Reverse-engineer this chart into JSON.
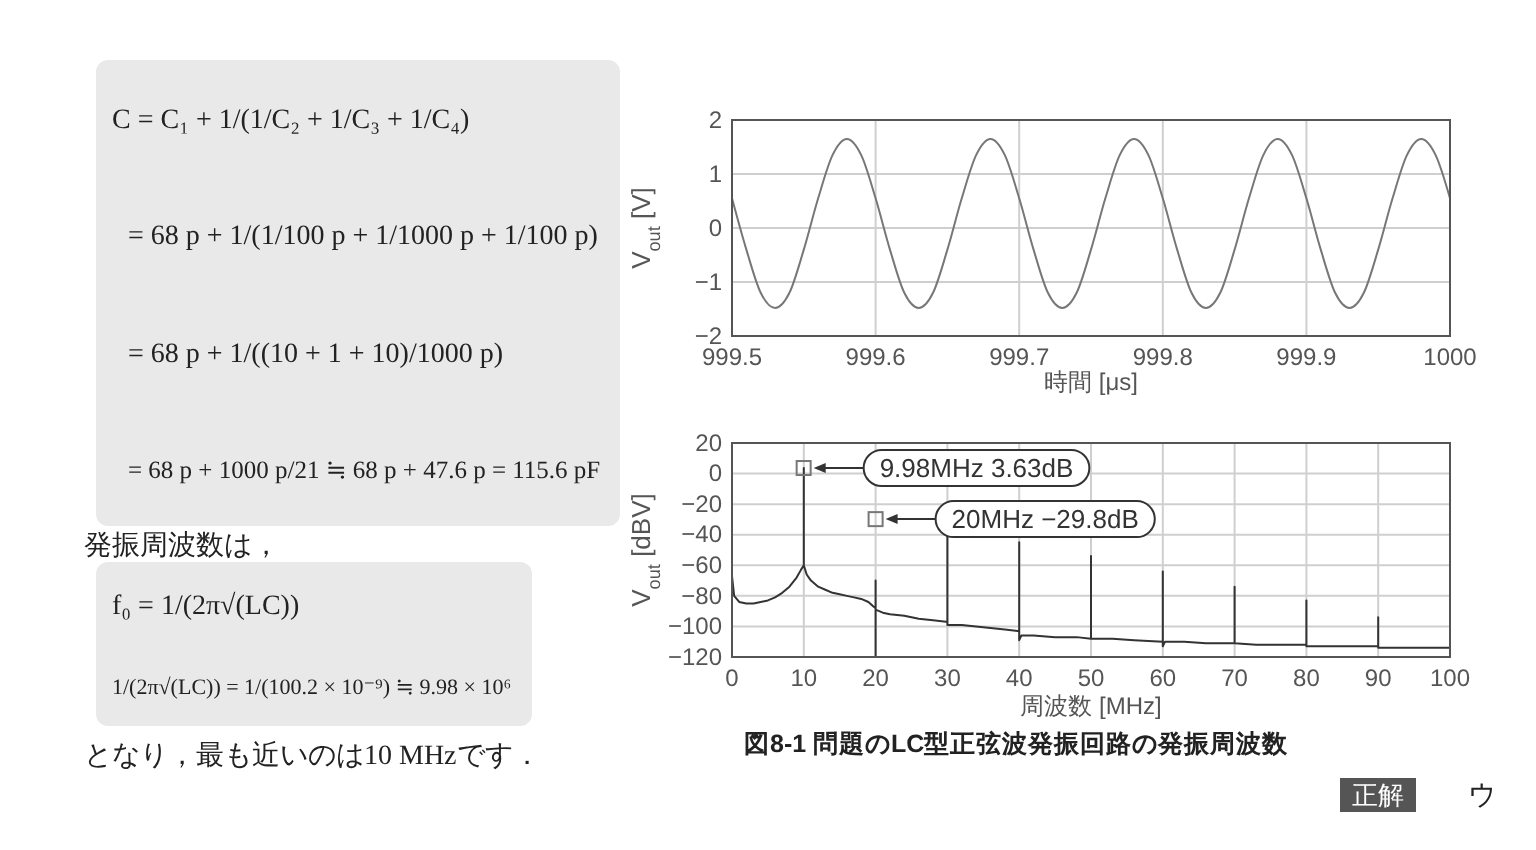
{
  "chart_data": [
    {
      "type": "other",
      "annotations": [
        "C = C₁ + 1/(1/C₂ + 1/C₃ + 1/C₄)",
        "= 68 p + 1/(1/100 p + 1/1000 p + 1/100 p)",
        "= 68 p + 1/((10 + 1 + 10)/1000 p)",
        "= 68 p + 1000 p/21 ≒ 68 p + 47.6 p = 115.6 pF",
        "発振周波数は，",
        "f₀ = 1/(2π√(LC))",
        "1/(2π√(LC)) = 1/(100.2 × 10⁻⁹) ≒ 9.98 × 10⁶",
        "となり，最も近いのは10 MHzです．"
      ]
    },
    {
      "type": "line",
      "xlabel": "時間 [μs]",
      "ylabel": "V$_{out}$ [V]",
      "color": "#777777",
      "grid": true,
      "xlim": [
        999.5,
        1000
      ],
      "ylim": [
        -2,
        2
      ],
      "xticks": [
        999.5,
        999.6,
        999.7,
        999.8,
        999.9,
        1000
      ],
      "yticks": [
        -2,
        -1,
        0,
        1,
        2
      ],
      "x": [
        999.5,
        999.51,
        999.52,
        999.53,
        999.54,
        999.55,
        999.56,
        999.57,
        999.58,
        999.59,
        999.6,
        999.61,
        999.62,
        999.63,
        999.64,
        999.65,
        999.66,
        999.67,
        999.68,
        999.69,
        999.7,
        999.71,
        999.72,
        999.73,
        999.74,
        999.75,
        999.76,
        999.77,
        999.78,
        999.79,
        999.8,
        999.81,
        999.82,
        999.83,
        999.84,
        999.85,
        999.86,
        999.87,
        999.88,
        999.89,
        999.9,
        999.91,
        999.92,
        999.93,
        999.94,
        999.95,
        999.96,
        999.97,
        999.98,
        999.99,
        1000
      ],
      "values": [
        0.55,
        -0.4,
        -1.2,
        -1.48,
        -1.2,
        -0.4,
        0.55,
        1.35,
        1.65,
        1.35,
        0.55,
        -0.4,
        -1.2,
        -1.48,
        -1.2,
        -0.4,
        0.55,
        1.35,
        1.65,
        1.35,
        0.55,
        -0.4,
        -1.2,
        -1.48,
        -1.2,
        -0.4,
        0.55,
        1.35,
        1.65,
        1.35,
        0.55,
        -0.4,
        -1.2,
        -1.48,
        -1.2,
        -0.4,
        0.55,
        1.35,
        1.65,
        1.35,
        0.55,
        -0.4,
        -1.2,
        -1.48,
        -1.2,
        -0.4,
        0.55,
        1.35,
        1.65,
        1.35,
        0.55
      ]
    },
    {
      "type": "line",
      "xlabel": "周波数 [MHz]",
      "ylabel": "V$_{out}$ [dBV]",
      "color": "#333333",
      "grid": true,
      "xlim": [
        0,
        100
      ],
      "ylim": [
        -120,
        20
      ],
      "xticks": [
        0,
        10,
        20,
        30,
        40,
        50,
        60,
        70,
        80,
        90,
        100
      ],
      "yticks": [
        -120,
        -100,
        -80,
        -60,
        -40,
        -20,
        0,
        20
      ],
      "x": [
        0,
        0.3,
        1,
        2,
        3,
        4,
        5,
        6,
        7,
        8,
        9,
        9.6,
        10,
        10,
        10,
        10.4,
        11,
        12,
        13,
        14,
        15,
        16,
        17,
        18,
        19,
        19.7,
        20,
        20,
        20,
        20,
        21,
        22,
        24,
        26,
        28,
        29.8,
        30,
        30,
        30,
        32,
        34,
        36,
        38,
        39.8,
        40,
        40,
        40,
        40.3,
        42,
        45,
        48,
        50,
        50,
        50,
        53,
        56,
        60,
        60,
        60,
        60.3,
        63,
        66,
        70,
        70,
        70,
        73,
        76,
        80,
        80,
        80,
        83,
        86,
        90,
        90,
        90,
        93,
        96,
        100,
        100
      ],
      "values": [
        -67,
        -80,
        -84,
        -85,
        -85,
        -84,
        -83,
        -81,
        -78,
        -74,
        -68,
        -63,
        -60,
        3.63,
        -60,
        -66,
        -70,
        -74,
        -76,
        -78,
        -79,
        -80,
        -81,
        -82,
        -84,
        -87,
        -88,
        -70,
        -120,
        -89,
        -91,
        -92,
        -93,
        -95,
        -96,
        -97,
        -97,
        -41,
        -99,
        -99,
        -100,
        -101,
        -102,
        -103,
        -103,
        -45,
        -109,
        -106,
        -106,
        -107,
        -107,
        -108,
        -54,
        -108,
        -108,
        -109,
        -110,
        -64,
        -113,
        -110,
        -110,
        -111,
        -111,
        -74,
        -111,
        -112,
        -112,
        -112,
        -83,
        -113,
        -113,
        -113,
        -113,
        -94,
        -114,
        -114,
        -114,
        -114,
        -100
      ],
      "annotations": [
        {
          "text": "9.98MHz 3.63dB",
          "x": 9.98,
          "y": 3.63
        },
        {
          "text": "20MHz −29.8dB",
          "x": 20,
          "y": -29.8
        },
        "図8-1 問題のLC型正弦波発振回路の発振周波数",
        "正解",
        "ウ"
      ]
    }
  ]
}
